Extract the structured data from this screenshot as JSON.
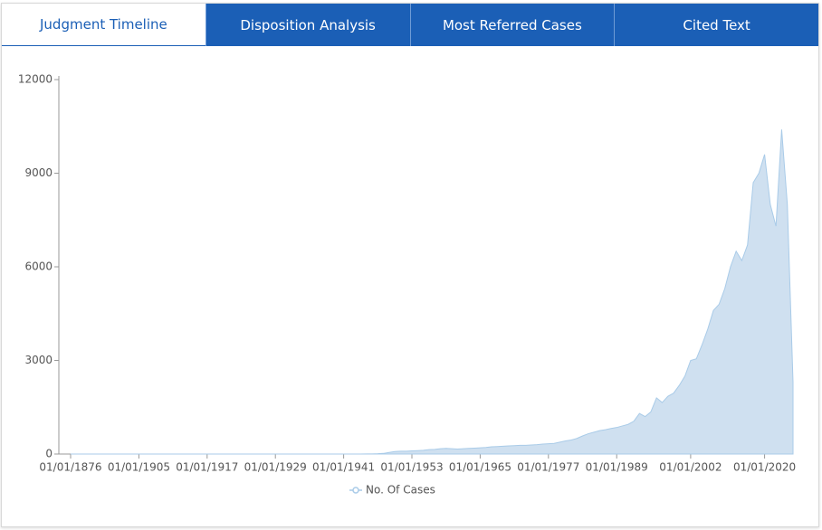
{
  "tabs": [
    {
      "label": "Judgment Timeline",
      "active": true
    },
    {
      "label": "Disposition Analysis",
      "active": false
    },
    {
      "label": "Most Referred Cases",
      "active": false
    },
    {
      "label": "Cited Text",
      "active": false
    }
  ],
  "chart_data": {
    "type": "area",
    "categories": [
      "01/01/1876",
      null,
      null,
      null,
      null,
      null,
      null,
      null,
      null,
      null,
      null,
      null,
      "01/01/1905",
      null,
      null,
      null,
      null,
      null,
      null,
      null,
      null,
      null,
      null,
      null,
      "01/01/1917",
      null,
      null,
      null,
      null,
      null,
      null,
      null,
      null,
      null,
      null,
      null,
      "01/01/1929",
      null,
      null,
      null,
      null,
      null,
      null,
      null,
      null,
      null,
      null,
      null,
      "01/01/1941",
      null,
      null,
      null,
      null,
      null,
      null,
      null,
      null,
      null,
      null,
      null,
      "01/01/1953",
      null,
      null,
      null,
      null,
      null,
      null,
      null,
      null,
      null,
      null,
      null,
      "01/01/1965",
      null,
      null,
      null,
      null,
      null,
      null,
      null,
      null,
      null,
      null,
      null,
      "01/01/1977",
      null,
      null,
      null,
      null,
      null,
      null,
      null,
      null,
      null,
      null,
      null,
      "01/01/1989",
      null,
      null,
      null,
      null,
      null,
      null,
      null,
      null,
      null,
      null,
      null,
      null,
      "01/01/2002",
      null,
      null,
      null,
      null,
      null,
      null,
      null,
      null,
      null,
      null,
      null,
      null,
      "01/01/2020",
      null,
      null,
      null,
      null,
      null
    ],
    "series": [
      {
        "name": "No. Of Cases",
        "color": "#a9cbe8",
        "fill": "#cfe0f0",
        "values": [
          0,
          0,
          0,
          0,
          0,
          0,
          0,
          0,
          0,
          0,
          0,
          0,
          0,
          0,
          0,
          0,
          0,
          0,
          0,
          0,
          0,
          0,
          0,
          0,
          0,
          0,
          0,
          0,
          0,
          0,
          0,
          0,
          0,
          0,
          0,
          0,
          0,
          0,
          0,
          0,
          0,
          0,
          0,
          0,
          0,
          0,
          0,
          0,
          0,
          0,
          0,
          0,
          5,
          5,
          10,
          20,
          50,
          80,
          90,
          90,
          100,
          110,
          120,
          140,
          150,
          170,
          180,
          170,
          160,
          170,
          180,
          190,
          200,
          210,
          230,
          240,
          250,
          260,
          270,
          280,
          280,
          290,
          300,
          320,
          330,
          340,
          380,
          420,
          450,
          500,
          580,
          650,
          700,
          750,
          780,
          820,
          850,
          900,
          950,
          1050,
          1300,
          1200,
          1350,
          1800,
          1650,
          1850,
          1950,
          2200,
          2500,
          3000,
          3050,
          3500,
          4000,
          4600,
          4800,
          5300,
          6000,
          6500,
          6200,
          6700,
          8700,
          9000,
          9600,
          8000,
          7300,
          10400,
          8000,
          2300
        ]
      }
    ],
    "ylim": [
      0,
      12000
    ],
    "yticks": [
      0,
      3000,
      6000,
      9000,
      12000
    ],
    "grid": false,
    "legend": "bottom"
  }
}
